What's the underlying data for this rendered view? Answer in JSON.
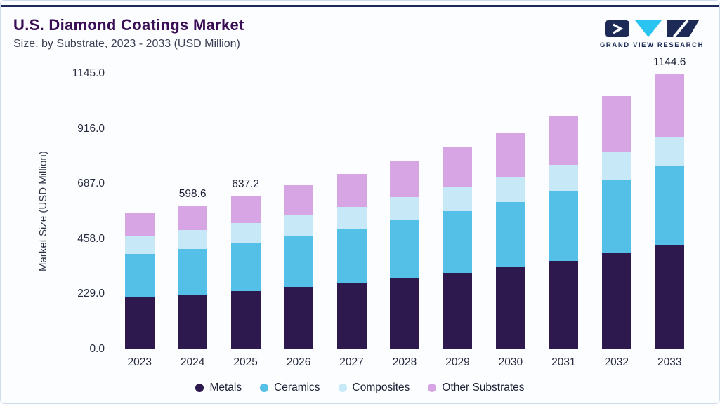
{
  "header": {
    "title": "U.S. Diamond Coatings Market",
    "subtitle": "Size, by Substrate, 2023 - 2033 (USD Million)",
    "logo_text": "GRAND VIEW RESEARCH"
  },
  "colors": {
    "accent_rule": "#1c2a55",
    "title": "#3a0e55",
    "logo_navy": "#1c2a55",
    "logo_cyan": "#29c4ef",
    "background": "#fbfdff"
  },
  "chart_data": {
    "type": "bar",
    "stacked": true,
    "title": "U.S. Diamond Coatings Market Size, by Substrate, 2023 - 2033 (USD Million)",
    "ylabel": "Market Size (USD Million)",
    "xlabel": "",
    "ylim": [
      0,
      1145
    ],
    "yticks": [
      0,
      229,
      458,
      687,
      916,
      1145
    ],
    "grid": false,
    "legend_position": "bottom",
    "categories": [
      "2023",
      "2024",
      "2025",
      "2026",
      "2027",
      "2028",
      "2029",
      "2030",
      "2031",
      "2032",
      "2033"
    ],
    "series": [
      {
        "name": "Metals",
        "color": "#2d194e",
        "values": [
          215.0,
          228.0,
          242.0,
          258.0,
          276.0,
          296.0,
          318.0,
          342.0,
          368.0,
          398.0,
          430.0
        ]
      },
      {
        "name": "Ceramics",
        "color": "#54c0e8",
        "values": [
          180.0,
          190.0,
          201.0,
          213.0,
          226.0,
          240.0,
          255.0,
          271.0,
          288.0,
          308.0,
          330.0
        ]
      },
      {
        "name": "Composites",
        "color": "#c6e8f7",
        "values": [
          75.0,
          78.0,
          82.0,
          86.0,
          90.0,
          95.0,
          100.0,
          105.0,
          111.0,
          115.0,
          120.0
        ]
      },
      {
        "name": "Other Substrates",
        "color": "#d7a4e4",
        "values": [
          95.0,
          102.6,
          112.2,
          124.0,
          137.0,
          150.0,
          165.0,
          182.0,
          200.0,
          231.0,
          264.6
        ]
      }
    ],
    "totals": [
      565.0,
      598.6,
      637.2,
      681.0,
      729.0,
      781.0,
      838.0,
      900.0,
      967.0,
      1052.0,
      1144.6
    ],
    "bar_labels": [
      "",
      "598.6",
      "637.2",
      "",
      "",
      "",
      "",
      "",
      "",
      "",
      "1144.6"
    ]
  }
}
